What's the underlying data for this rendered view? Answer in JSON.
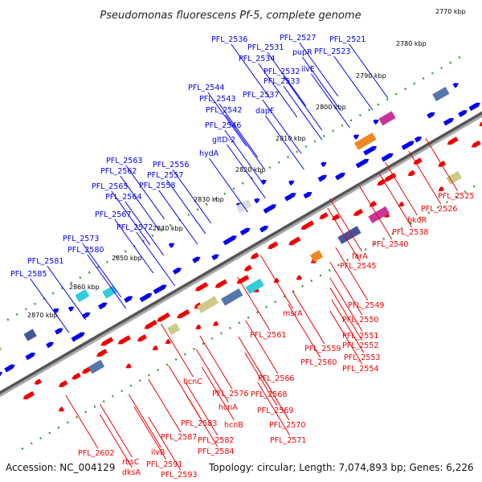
{
  "title": "Pseudomonas fluorescens Pf-5, complete genome",
  "footer": {
    "accession": "Accession: NC_004129",
    "topology": "Topology: circular; Length: 7,074,893 bp; Genes: 6,226"
  },
  "colors": {
    "forward": "#0000ee",
    "reverse": "#ee0000",
    "backbone": "#888888",
    "dots": "#3a9a3a"
  },
  "kbp_labels": [
    "2770 kbp",
    "2780 kbp",
    "2790 kbp",
    "2800 kbp",
    "2810 kbp",
    "2820 kbp",
    "2830 kbp",
    "2840 kbp",
    "2850 kbp",
    "2860 kbp",
    "2870 kbp"
  ],
  "forward_genes": [
    "PFL_2536",
    "PFL_2531",
    "PFL_2527",
    "PFL_2521",
    "PFL_2534",
    "pupR",
    "PFL_2523",
    "ilvE",
    "PFL_2532",
    "PFL_2533",
    "PFL_2544",
    "PFL_2543",
    "PFL_2537",
    "PFL_2542",
    "dapF",
    "PFL_2546",
    "gltD-2",
    "hydA",
    "PFL_2563",
    "PFL_2556",
    "PFL_2562",
    "PFL_2557",
    "PFL_2565",
    "PFL_2558",
    "PFL_2564",
    "PFL_2567",
    "PFL_2572",
    "PFL_2573",
    "PFL_2580",
    "PFL_2581",
    "PFL_2585"
  ],
  "reverse_genes": [
    "PFL_2525",
    "PFL_2526",
    "bkdR",
    "PFL_2538",
    "PFL_2540",
    "farA",
    "PFL_2545",
    "PFL_2549",
    "msrA",
    "PFL_2550",
    "PFL_2551",
    "PFL_2552",
    "PFL_2559",
    "PFL_2553",
    "PFL_2561",
    "PFL_2560",
    "PFL_2554",
    "PFL_2566",
    "hcnC",
    "PFL_2576",
    "PFL_2568",
    "hcnA",
    "PFL_2569",
    "PFL_2583",
    "hcnB",
    "PFL_2570",
    "PFL_2587",
    "PFL_2582",
    "PFL_2571",
    "PFL_2584",
    "PFL_2602",
    "rbsC",
    "ilvB",
    "PFL_2591",
    "dksA",
    "PFL_2593"
  ]
}
